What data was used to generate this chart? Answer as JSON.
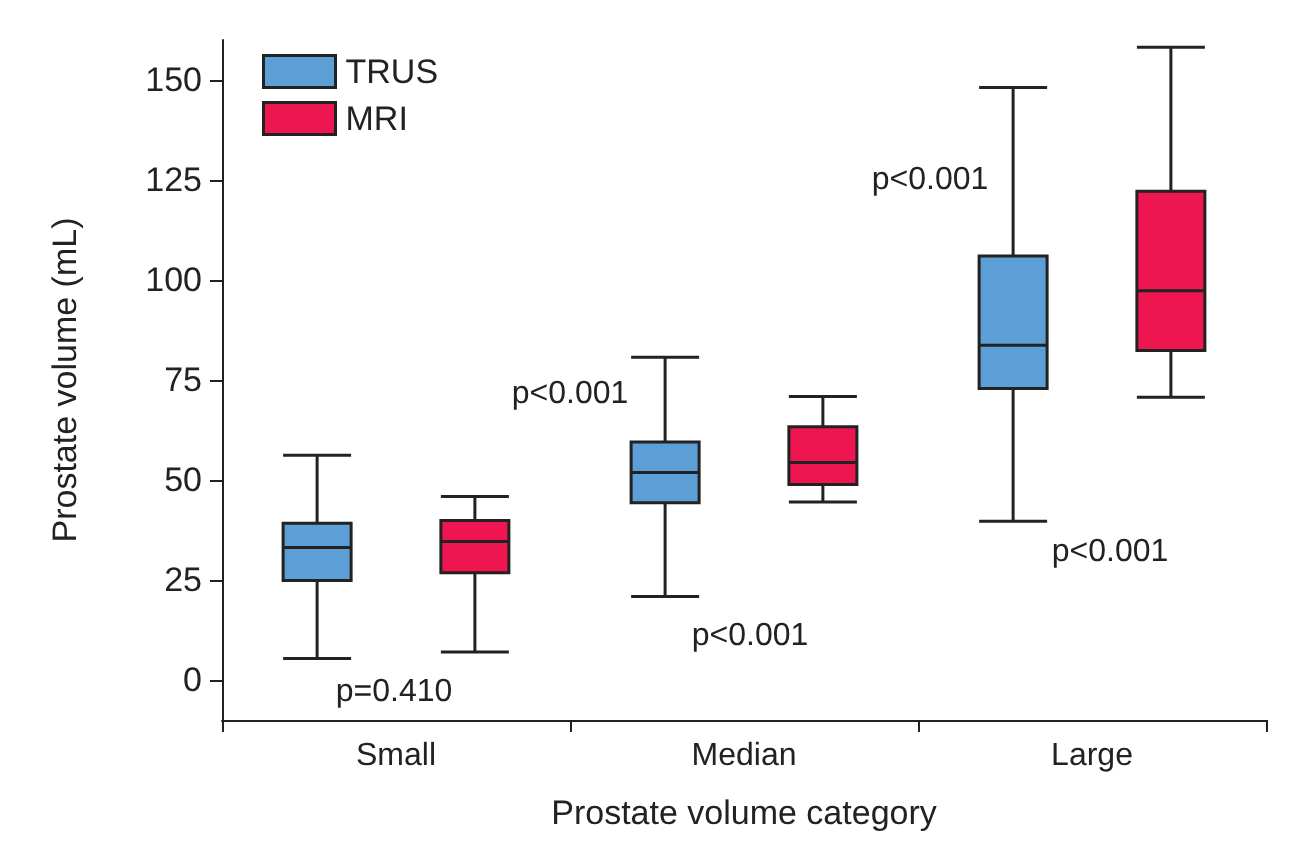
{
  "chart_data": {
    "type": "box",
    "xlabel": "Prostate volume category",
    "ylabel": "Prostate volume (mL)",
    "categories": [
      "Small",
      "Median",
      "Large"
    ],
    "series": [
      {
        "name": "TRUS",
        "color": "#5b9fd6",
        "boxes": [
          {
            "low": 5.4,
            "q1": 24.9,
            "median": 33.1,
            "q3": 39.2,
            "high": 56.2
          },
          {
            "low": 20.9,
            "q1": 44.3,
            "median": 51.9,
            "q3": 59.5,
            "high": 80.7
          },
          {
            "low": 39.7,
            "q1": 72.9,
            "median": 83.7,
            "q3": 106,
            "high": 148.1
          }
        ]
      },
      {
        "name": "MRI",
        "color": "#ee1651",
        "boxes": [
          {
            "low": 7,
            "q1": 26.8,
            "median": 34.6,
            "q3": 39.9,
            "high": 45.9
          },
          {
            "low": 44.5,
            "q1": 48.9,
            "median": 54.4,
            "q3": 63.3,
            "high": 70.9
          },
          {
            "low": 70.7,
            "q1": 82.4,
            "median": 97.3,
            "q3": 122.2,
            "high": 158.2
          }
        ]
      }
    ],
    "ylim": [
      -10,
      160
    ],
    "yticks": [
      0,
      25,
      50,
      75,
      100,
      125,
      150
    ],
    "grid": false,
    "legend": "top left",
    "annotations": [
      "p=0.410",
      "p<0.001",
      "p<0.001",
      "p<0.001",
      "p<0.001"
    ]
  }
}
